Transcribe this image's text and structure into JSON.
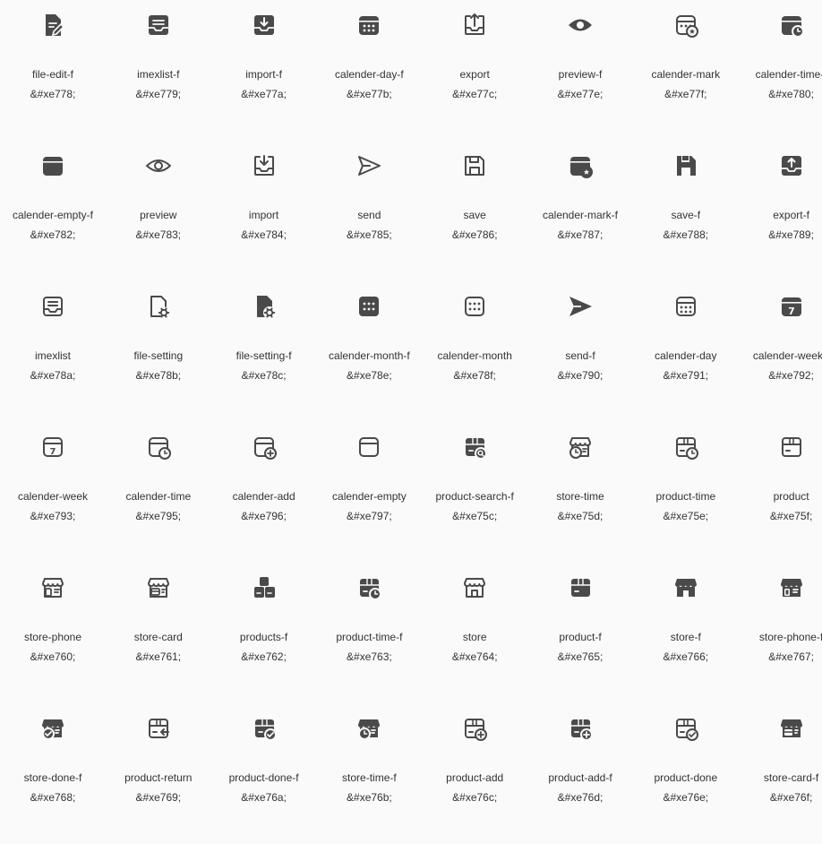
{
  "colors": {
    "icon": "#4a4a4a",
    "text": "#333333",
    "background": "#fafafa"
  },
  "icons": [
    {
      "name": "file-edit-f",
      "code": "&#xe778;",
      "glyph": "file-edit-f-icon"
    },
    {
      "name": "imexlist-f",
      "code": "&#xe779;",
      "glyph": "imexlist-f-icon"
    },
    {
      "name": "import-f",
      "code": "&#xe77a;",
      "glyph": "import-f-icon"
    },
    {
      "name": "calender-day-f",
      "code": "&#xe77b;",
      "glyph": "calender-day-f-icon"
    },
    {
      "name": "export",
      "code": "&#xe77c;",
      "glyph": "export-icon"
    },
    {
      "name": "preview-f",
      "code": "&#xe77e;",
      "glyph": "preview-f-icon"
    },
    {
      "name": "calender-mark",
      "code": "&#xe77f;",
      "glyph": "calender-mark-icon"
    },
    {
      "name": "calender-time-f",
      "code": "&#xe780;",
      "glyph": "calender-time-f-icon"
    },
    {
      "name": "calender-empty-f",
      "code": "&#xe782;",
      "glyph": "calender-empty-f-icon"
    },
    {
      "name": "preview",
      "code": "&#xe783;",
      "glyph": "preview-icon"
    },
    {
      "name": "import",
      "code": "&#xe784;",
      "glyph": "import-icon"
    },
    {
      "name": "send",
      "code": "&#xe785;",
      "glyph": "send-icon"
    },
    {
      "name": "save",
      "code": "&#xe786;",
      "glyph": "save-icon"
    },
    {
      "name": "calender-mark-f",
      "code": "&#xe787;",
      "glyph": "calender-mark-f-icon"
    },
    {
      "name": "save-f",
      "code": "&#xe788;",
      "glyph": "save-f-icon"
    },
    {
      "name": "export-f",
      "code": "&#xe789;",
      "glyph": "export-f-icon"
    },
    {
      "name": "imexlist",
      "code": "&#xe78a;",
      "glyph": "imexlist-icon"
    },
    {
      "name": "file-setting",
      "code": "&#xe78b;",
      "glyph": "file-setting-icon"
    },
    {
      "name": "file-setting-f",
      "code": "&#xe78c;",
      "glyph": "file-setting-f-icon"
    },
    {
      "name": "calender-month-f",
      "code": "&#xe78e;",
      "glyph": "calender-month-f-icon"
    },
    {
      "name": "calender-month",
      "code": "&#xe78f;",
      "glyph": "calender-month-icon"
    },
    {
      "name": "send-f",
      "code": "&#xe790;",
      "glyph": "send-f-icon"
    },
    {
      "name": "calender-day",
      "code": "&#xe791;",
      "glyph": "calender-day-icon"
    },
    {
      "name": "calender-week-f",
      "code": "&#xe792;",
      "glyph": "calender-week-f-icon"
    },
    {
      "name": "calender-week",
      "code": "&#xe793;",
      "glyph": "calender-week-icon"
    },
    {
      "name": "calender-time",
      "code": "&#xe795;",
      "glyph": "calender-time-icon"
    },
    {
      "name": "calender-add",
      "code": "&#xe796;",
      "glyph": "calender-add-icon"
    },
    {
      "name": "calender-empty",
      "code": "&#xe797;",
      "glyph": "calender-empty-icon"
    },
    {
      "name": "product-search-f",
      "code": "&#xe75c;",
      "glyph": "product-search-f-icon"
    },
    {
      "name": "store-time",
      "code": "&#xe75d;",
      "glyph": "store-time-icon"
    },
    {
      "name": "product-time",
      "code": "&#xe75e;",
      "glyph": "product-time-icon"
    },
    {
      "name": "product",
      "code": "&#xe75f;",
      "glyph": "product-icon"
    },
    {
      "name": "store-phone",
      "code": "&#xe760;",
      "glyph": "store-phone-icon"
    },
    {
      "name": "store-card",
      "code": "&#xe761;",
      "glyph": "store-card-icon"
    },
    {
      "name": "products-f",
      "code": "&#xe762;",
      "glyph": "products-f-icon"
    },
    {
      "name": "product-time-f",
      "code": "&#xe763;",
      "glyph": "product-time-f-icon"
    },
    {
      "name": "store",
      "code": "&#xe764;",
      "glyph": "store-icon"
    },
    {
      "name": "product-f",
      "code": "&#xe765;",
      "glyph": "product-f-icon"
    },
    {
      "name": "store-f",
      "code": "&#xe766;",
      "glyph": "store-f-icon"
    },
    {
      "name": "store-phone-f",
      "code": "&#xe767;",
      "glyph": "store-phone-f-icon"
    },
    {
      "name": "store-done-f",
      "code": "&#xe768;",
      "glyph": "store-done-f-icon"
    },
    {
      "name": "product-return",
      "code": "&#xe769;",
      "glyph": "product-return-icon"
    },
    {
      "name": "product-done-f",
      "code": "&#xe76a;",
      "glyph": "product-done-f-icon"
    },
    {
      "name": "store-time-f",
      "code": "&#xe76b;",
      "glyph": "store-time-f-icon"
    },
    {
      "name": "product-add",
      "code": "&#xe76c;",
      "glyph": "product-add-icon"
    },
    {
      "name": "product-add-f",
      "code": "&#xe76d;",
      "glyph": "product-add-f-icon"
    },
    {
      "name": "product-done",
      "code": "&#xe76e;",
      "glyph": "product-done-icon"
    },
    {
      "name": "store-card-f",
      "code": "&#xe76f;",
      "glyph": "store-card-f-icon"
    }
  ]
}
